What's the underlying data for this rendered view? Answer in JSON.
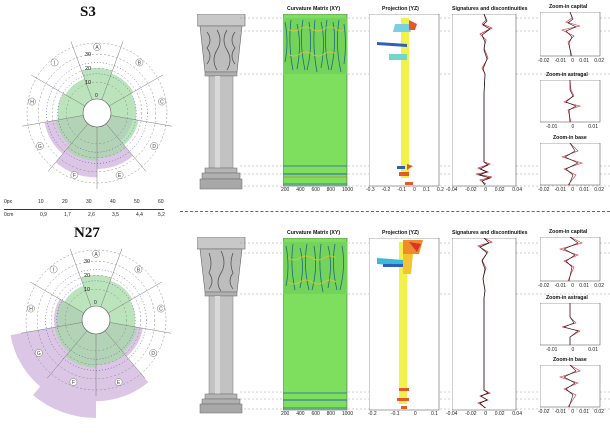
{
  "panels": [
    {
      "title": "S3",
      "radar": {
        "ring_labels": [
          "10",
          "20",
          "30"
        ],
        "sectors": [
          "A",
          "B",
          "C",
          "D",
          "E",
          "F",
          "G",
          "H",
          "I"
        ],
        "green_levels": [
          0.55,
          0.5,
          0.45,
          0.5,
          0.55,
          0.6,
          0.5,
          0.45,
          0.4
        ],
        "purple_levels": [
          0,
          0,
          0,
          0.4,
          0.75,
          0.9,
          0.7,
          0,
          0
        ],
        "center_label": "0"
      },
      "plots": {
        "curvature_title": "Curvature Matrix (XY)",
        "projection_title": "Projection (YZ)",
        "signatures_title": "Signatures and discontinuities",
        "zoom_capital_title": "Zoom-in capital",
        "zoom_astragal_title": "Zoom-in astragal",
        "zoom_base_title": "Zoom-in base",
        "curvature_ticks": [
          "200",
          "400",
          "600",
          "800",
          "1000"
        ],
        "projection_ticks": [
          "-0.3",
          "-0.2",
          "-0.1",
          "0",
          "0.1",
          "0.2"
        ],
        "signature_ticks": [
          "-0.04",
          "-0.02",
          "0",
          "0.02",
          "0.04"
        ],
        "zoom_capital_ticks": [
          "-0.02",
          "-0.01",
          "0",
          "0.01",
          "0.02"
        ],
        "zoom_astragal_ticks": [
          "-0.01",
          "0",
          "0.01"
        ],
        "zoom_base_ticks": [
          "-0.02",
          "-0.01",
          "0",
          "0.01",
          "0.02"
        ]
      }
    },
    {
      "title": "N27",
      "radar": {
        "ring_labels": [
          "10",
          "20",
          "30"
        ],
        "sectors": [
          "A",
          "B",
          "C",
          "D",
          "E",
          "F",
          "G",
          "H",
          "I"
        ],
        "green_levels": [
          0.55,
          0.5,
          0.45,
          0.5,
          0.55,
          0.6,
          0.5,
          0.45,
          0.4
        ],
        "purple_levels": [
          0,
          0,
          0,
          0.6,
          1.2,
          1.5,
          1.3,
          0.5,
          0
        ],
        "center_label": "0"
      },
      "plots": {
        "curvature_title": "Curvature Matrix (XY)",
        "projection_title": "Projection (YZ)",
        "signatures_title": "Signatures and discontinuities",
        "zoom_capital_title": "Zoom-in capital",
        "zoom_astragal_title": "Zoom-in astragal",
        "zoom_base_title": "Zoom-in base",
        "curvature_ticks": [
          "200",
          "400",
          "600",
          "800",
          "1000"
        ],
        "projection_ticks": [
          "-0.2",
          "-0.1",
          "0",
          "0.1"
        ],
        "signature_ticks": [
          "-0.04",
          "-0.02",
          "0",
          "0.02",
          "0.04"
        ],
        "zoom_capital_ticks": [
          "-0.02",
          "-0.01",
          "0",
          "0.01",
          "0.02"
        ],
        "zoom_astragal_ticks": [
          "-0.01",
          "0",
          "0.01"
        ],
        "zoom_base_ticks": [
          "-0.02",
          "-0.01",
          "0",
          "0.01",
          "0.02"
        ]
      }
    }
  ],
  "scale": {
    "px_label": "0px",
    "cm_label": "0cm",
    "px_ticks": [
      "10",
      "20",
      "30",
      "40",
      "50",
      "60"
    ],
    "cm_ticks": [
      "0,9",
      "1,7",
      "2,6",
      "3,5",
      "4,4",
      "5,2"
    ]
  },
  "colors": {
    "green": "#9fd99f",
    "purple": "#c9a8d8",
    "curvature_green": "#7ede5e",
    "projection_yellow": "#f2f04a"
  }
}
